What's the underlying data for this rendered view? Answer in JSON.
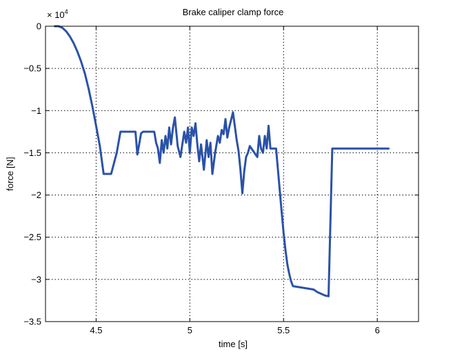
{
  "chart_data": {
    "type": "line",
    "title": "Brake caliper clamp force",
    "xlabel": "time [s]",
    "ylabel": "force [N]",
    "y_multiplier_base": "× 10",
    "y_multiplier_exp": "4",
    "xlim": [
      4.23,
      6.22
    ],
    "ylim": [
      -3.5,
      0
    ],
    "grid": true,
    "line_color": "#2a52a8",
    "x_ticks": [
      4.5,
      5,
      5.5,
      6
    ],
    "x_tick_labels": [
      "4.5",
      "5",
      "5.5",
      "6"
    ],
    "y_ticks": [
      0,
      -0.5,
      -1,
      -1.5,
      -2,
      -2.5,
      -3,
      -3.5
    ],
    "y_tick_labels": [
      "0",
      "−0.5",
      "−1",
      "−1.5",
      "−2",
      "−2.5",
      "−3",
      "−3.5"
    ],
    "series": [
      {
        "x": [
          4.28,
          4.3,
          4.32,
          4.34,
          4.36,
          4.38,
          4.4,
          4.42,
          4.44,
          4.46,
          4.48,
          4.5,
          4.52,
          4.54,
          4.58,
          4.61,
          4.63,
          4.71,
          4.72,
          4.74,
          4.75,
          4.76,
          4.81,
          4.82,
          4.83,
          4.84,
          4.85,
          4.86,
          4.87,
          4.88,
          4.89,
          4.9,
          4.91,
          4.92,
          4.935,
          4.95,
          4.97,
          4.98,
          4.99,
          5.0,
          5.01,
          5.02,
          5.03,
          5.04,
          5.05,
          5.06,
          5.075,
          5.09,
          5.1,
          5.11,
          5.12,
          5.135,
          5.15,
          5.16,
          5.17,
          5.18,
          5.19,
          5.2,
          5.21,
          5.23,
          5.25,
          5.26,
          5.27,
          5.28,
          5.29,
          5.3,
          5.31,
          5.32,
          5.36,
          5.37,
          5.38,
          5.39,
          5.4,
          5.41,
          5.42,
          5.43,
          5.44,
          5.45,
          5.46,
          5.47,
          5.48,
          5.49,
          5.5,
          5.51,
          5.52,
          5.53,
          5.54,
          5.55,
          5.66,
          5.68,
          5.7,
          5.72,
          5.74,
          5.76,
          5.78,
          5.8,
          5.82,
          5.84,
          5.86,
          5.88,
          5.9,
          5.92,
          5.94,
          5.96,
          5.98,
          6.0,
          6.02,
          6.04,
          6.06
        ],
        "y": [
          0,
          0,
          -0.02,
          -0.06,
          -0.12,
          -0.2,
          -0.3,
          -0.42,
          -0.56,
          -0.74,
          -0.95,
          -1.18,
          -1.42,
          -1.75,
          -1.75,
          -1.5,
          -1.25,
          -1.25,
          -1.52,
          -1.27,
          -1.25,
          -1.25,
          -1.25,
          -1.38,
          -1.45,
          -1.62,
          -1.35,
          -1.5,
          -1.3,
          -1.45,
          -1.2,
          -1.4,
          -1.2,
          -1.08,
          -1.42,
          -1.55,
          -1.25,
          -1.38,
          -1.2,
          -1.5,
          -1.2,
          -1.3,
          -1.15,
          -1.4,
          -1.6,
          -1.4,
          -1.7,
          -1.35,
          -1.55,
          -1.38,
          -1.75,
          -1.5,
          -1.3,
          -1.38,
          -1.23,
          -1.28,
          -1.1,
          -1.32,
          -1.2,
          -1.02,
          -1.35,
          -1.48,
          -1.7,
          -1.98,
          -1.72,
          -1.55,
          -1.5,
          -1.42,
          -1.55,
          -1.3,
          -1.45,
          -1.5,
          -1.3,
          -1.45,
          -1.18,
          -1.45,
          -1.45,
          -1.45,
          -1.45,
          -1.7,
          -1.95,
          -2.2,
          -2.45,
          -2.65,
          -2.82,
          -2.93,
          -3.02,
          -3.08,
          -3.12,
          -3.15,
          -3.17,
          -3.19,
          -3.2,
          -1.45,
          -1.45,
          -1.45,
          -1.45,
          -1.45,
          -1.45,
          -1.45,
          -1.45,
          -1.45,
          -1.45,
          -1.45,
          -1.45,
          -1.45,
          -1.45,
          -1.45,
          -1.45
        ]
      }
    ]
  }
}
